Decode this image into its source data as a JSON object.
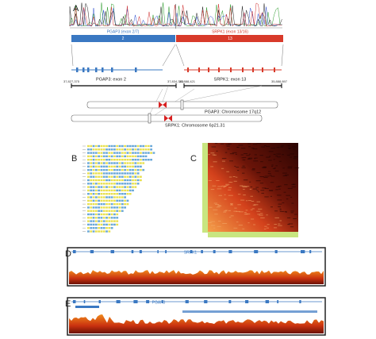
{
  "panels": {
    "a": "A",
    "b": "B",
    "c": "C",
    "d": "D",
    "e": "E"
  },
  "fusion": {
    "left_exon": "PGAP3 (exon 2/7)",
    "right_exon": "SRPK1 (exon 13/16)",
    "left_box": "2",
    "right_box": "13"
  },
  "genes": {
    "left": "PGAP3: exon 2",
    "right": "SRPK1: exon 13"
  },
  "coords": {
    "left_start": "37,827,375",
    "left_end": "37,834,343",
    "right_start": "35,888,421",
    "right_end": "35,888,897"
  },
  "chromosomes": {
    "first": "PGAP3: Chromosome 17q12",
    "second": "SRPK1: Chromosome 6p21.31"
  },
  "tracks": {
    "d": "SRPK1",
    "e": "PGAP3"
  }
}
